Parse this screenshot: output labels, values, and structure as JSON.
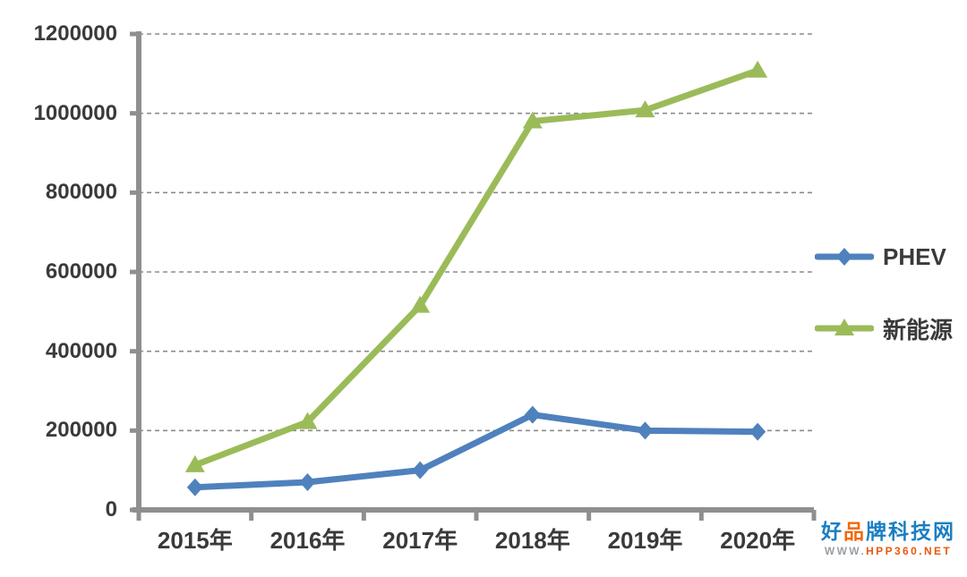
{
  "chart_data": {
    "type": "line",
    "title": "",
    "xlabel": "",
    "ylabel": "",
    "categories": [
      "2015年",
      "2016年",
      "2017年",
      "2018年",
      "2019年",
      "2020年"
    ],
    "series": [
      {
        "name": "PHEV",
        "marker": "diamond",
        "color": "#4f81bd",
        "values": [
          57000,
          70000,
          100000,
          240000,
          200000,
          197000
        ]
      },
      {
        "name": "新能源",
        "marker": "triangle",
        "color": "#9bbb59",
        "values": [
          113000,
          222000,
          515000,
          980000,
          1008000,
          1108000
        ]
      }
    ],
    "ylim": [
      0,
      1200000
    ],
    "ytick_interval": 200000,
    "ytick_labels": [
      "0",
      "200000",
      "400000",
      "600000",
      "800000",
      "1000000",
      "1200000"
    ],
    "grid": "horizontal-dashed",
    "legend_position": "right-middle",
    "colors": {
      "axis": "#8f8f8f",
      "grid": "#8c8c8c",
      "label": "#3a3a3a"
    }
  },
  "watermark": {
    "brand_segments": [
      {
        "text": "好",
        "color": "#1b7ec2"
      },
      {
        "text": "品",
        "color": "#f2680c"
      },
      {
        "text": "牌科技网",
        "color": "#1b7ec2"
      }
    ],
    "url_prefix": "WWW.",
    "url_prefix_color": "#9aa0a6",
    "url_main": "HPP360.NET",
    "url_main_color": "#e8590c"
  }
}
